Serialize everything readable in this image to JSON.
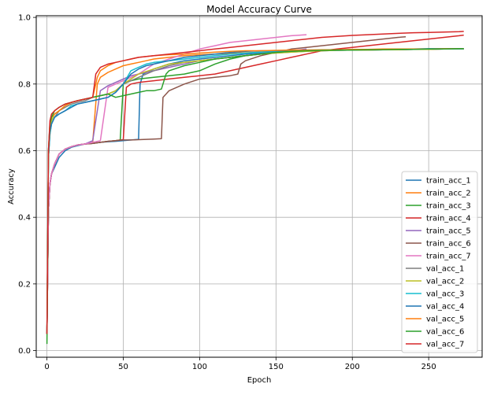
{
  "chart_data": {
    "type": "line",
    "title": "Model Accuracy Curve",
    "xlabel": "Epoch",
    "ylabel": "Accuracy",
    "xlim": [
      -7,
      285
    ],
    "ylim": [
      -0.02,
      1.005
    ],
    "xticks": [
      0,
      50,
      100,
      150,
      200,
      250
    ],
    "yticks": [
      0.0,
      0.2,
      0.4,
      0.6,
      0.8,
      1.0
    ],
    "ytick_labels": [
      "0.0",
      "0.2",
      "0.4",
      "0.6",
      "0.8",
      "1.0"
    ],
    "grid": true,
    "legend_position": "lower right",
    "series": [
      {
        "name": "train_acc_1",
        "color": "#1f77b4",
        "x": [
          0,
          1,
          2,
          3,
          5,
          8,
          12,
          16,
          20,
          25,
          30,
          35,
          40,
          45,
          50,
          55,
          60,
          61,
          63,
          70,
          80,
          90,
          100,
          110,
          120,
          130,
          140,
          150,
          160,
          170,
          180,
          190,
          200,
          210,
          220,
          230,
          240,
          250,
          260,
          270,
          273
        ],
        "y": [
          0.05,
          0.42,
          0.5,
          0.53,
          0.55,
          0.58,
          0.6,
          0.61,
          0.615,
          0.62,
          0.622,
          0.625,
          0.627,
          0.628,
          0.63,
          0.632,
          0.634,
          0.8,
          0.83,
          0.845,
          0.86,
          0.87,
          0.875,
          0.88,
          0.885,
          0.89,
          0.893,
          0.896,
          0.898,
          0.9,
          0.9,
          0.901,
          0.902,
          0.902,
          0.903,
          0.903,
          0.904,
          0.904,
          0.905,
          0.905,
          0.905
        ]
      },
      {
        "name": "train_acc_2",
        "color": "#ff7f0e",
        "x": [
          0,
          1,
          2,
          3,
          5,
          8,
          12,
          16,
          20,
          25,
          30,
          33,
          35,
          40,
          45,
          50,
          55,
          60,
          65,
          70,
          80,
          90,
          100,
          110,
          120,
          130,
          140,
          150,
          160,
          170,
          180,
          190,
          200,
          210,
          220,
          230,
          240,
          250,
          260,
          270,
          273
        ],
        "y": [
          0.05,
          0.42,
          0.5,
          0.53,
          0.56,
          0.59,
          0.605,
          0.612,
          0.617,
          0.62,
          0.625,
          0.8,
          0.82,
          0.835,
          0.845,
          0.855,
          0.86,
          0.865,
          0.87,
          0.875,
          0.88,
          0.885,
          0.888,
          0.89,
          0.892,
          0.894,
          0.896,
          0.898,
          0.9,
          0.9,
          0.901,
          0.902,
          0.902,
          0.903,
          0.903,
          0.904,
          0.904,
          0.905,
          0.905,
          0.905,
          0.905
        ]
      },
      {
        "name": "train_acc_3",
        "color": "#2ca02c",
        "x": [
          0,
          1,
          2,
          3,
          5,
          8,
          12,
          16,
          20,
          25,
          30,
          35,
          40,
          45,
          48,
          50,
          55,
          60,
          70,
          80,
          90,
          100,
          110,
          120,
          130,
          140,
          150,
          160,
          170,
          180,
          190,
          200,
          210,
          220,
          230,
          240,
          250,
          260,
          270,
          273
        ],
        "y": [
          0.05,
          0.42,
          0.5,
          0.53,
          0.56,
          0.59,
          0.605,
          0.612,
          0.617,
          0.62,
          0.622,
          0.625,
          0.628,
          0.63,
          0.632,
          0.8,
          0.81,
          0.815,
          0.82,
          0.825,
          0.83,
          0.84,
          0.86,
          0.875,
          0.885,
          0.89,
          0.895,
          0.898,
          0.9,
          0.901,
          0.902,
          0.902,
          0.903,
          0.903,
          0.904,
          0.904,
          0.905,
          0.905,
          0.906,
          0.906
        ]
      },
      {
        "name": "train_acc_4",
        "color": "#d62728",
        "x": [
          0,
          1,
          2,
          3,
          5,
          8,
          12,
          16,
          20,
          25,
          30,
          35,
          40,
          45,
          50,
          52,
          55,
          60,
          70,
          80,
          90,
          100,
          110,
          120,
          130,
          140,
          150,
          160,
          170,
          180,
          190,
          200,
          210,
          220,
          230,
          240,
          250,
          260,
          270,
          273
        ],
        "y": [
          0.05,
          0.42,
          0.5,
          0.53,
          0.56,
          0.59,
          0.605,
          0.612,
          0.617,
          0.62,
          0.622,
          0.625,
          0.628,
          0.63,
          0.633,
          0.79,
          0.8,
          0.805,
          0.81,
          0.815,
          0.82,
          0.825,
          0.83,
          0.84,
          0.85,
          0.86,
          0.87,
          0.88,
          0.89,
          0.9,
          0.905,
          0.91,
          0.915,
          0.92,
          0.925,
          0.93,
          0.935,
          0.94,
          0.945,
          0.947
        ]
      },
      {
        "name": "train_acc_5",
        "color": "#9467bd",
        "x": [
          0,
          1,
          2,
          3,
          5,
          8,
          12,
          16,
          20,
          25,
          30,
          35,
          40,
          45,
          50,
          55,
          60,
          70,
          80,
          90,
          100,
          110,
          120,
          130,
          140,
          150,
          160,
          170
        ],
        "y": [
          0.05,
          0.42,
          0.5,
          0.53,
          0.56,
          0.59,
          0.605,
          0.612,
          0.617,
          0.62,
          0.63,
          0.78,
          0.795,
          0.805,
          0.815,
          0.825,
          0.83,
          0.84,
          0.85,
          0.86,
          0.87,
          0.875,
          0.88,
          0.885,
          0.89,
          0.895,
          0.9,
          0.905
        ]
      },
      {
        "name": "train_acc_6",
        "color": "#8c564b",
        "x": [
          0,
          1,
          2,
          3,
          5,
          8,
          12,
          16,
          20,
          25,
          30,
          35,
          40,
          45,
          50,
          55,
          60,
          65,
          70,
          75,
          76,
          78,
          80,
          90,
          100,
          110,
          120,
          125,
          127,
          130,
          140,
          150,
          160,
          170,
          180,
          190,
          200,
          210,
          220,
          230,
          235
        ],
        "y": [
          0.05,
          0.42,
          0.5,
          0.53,
          0.56,
          0.59,
          0.605,
          0.612,
          0.617,
          0.62,
          0.622,
          0.625,
          0.628,
          0.63,
          0.632,
          0.632,
          0.633,
          0.634,
          0.635,
          0.636,
          0.76,
          0.77,
          0.78,
          0.8,
          0.815,
          0.82,
          0.825,
          0.83,
          0.86,
          0.87,
          0.885,
          0.895,
          0.905,
          0.91,
          0.915,
          0.92,
          0.925,
          0.93,
          0.935,
          0.94,
          0.942
        ]
      },
      {
        "name": "train_acc_7",
        "color": "#e377c2",
        "x": [
          0,
          1,
          2,
          3,
          5,
          8,
          12,
          16,
          20,
          25,
          30,
          35,
          40,
          45,
          50,
          55,
          60,
          65,
          70,
          80,
          90,
          100,
          110,
          120,
          130,
          140,
          150,
          160,
          170
        ],
        "y": [
          0.05,
          0.42,
          0.5,
          0.53,
          0.56,
          0.59,
          0.605,
          0.612,
          0.617,
          0.62,
          0.625,
          0.63,
          0.79,
          0.8,
          0.81,
          0.82,
          0.83,
          0.845,
          0.86,
          0.875,
          0.89,
          0.905,
          0.915,
          0.925,
          0.93,
          0.935,
          0.94,
          0.945,
          0.948
        ]
      },
      {
        "name": "val_acc_1",
        "color": "#7f7f7f",
        "x": [
          0,
          1,
          2,
          3,
          5,
          8,
          12,
          16,
          20,
          25,
          30,
          35,
          40,
          45,
          50,
          55,
          60,
          70,
          80,
          90,
          100,
          110,
          120,
          130,
          140,
          150,
          160,
          170,
          180,
          190,
          200,
          210,
          220,
          230,
          240,
          250,
          260,
          270,
          273
        ],
        "y": [
          0.05,
          0.58,
          0.65,
          0.68,
          0.7,
          0.72,
          0.73,
          0.74,
          0.745,
          0.75,
          0.76,
          0.765,
          0.77,
          0.78,
          0.8,
          0.81,
          0.82,
          0.84,
          0.855,
          0.865,
          0.87,
          0.875,
          0.88,
          0.885,
          0.89,
          0.893,
          0.896,
          0.898,
          0.9,
          0.901,
          0.902,
          0.902,
          0.903,
          0.903,
          0.904,
          0.904,
          0.905,
          0.905,
          0.905
        ]
      },
      {
        "name": "val_acc_2",
        "color": "#bcbd22",
        "x": [
          0,
          1,
          2,
          3,
          5,
          8,
          12,
          16,
          20,
          25,
          30,
          35,
          40,
          45,
          50,
          55,
          60,
          70,
          80,
          90,
          100,
          110,
          120,
          130,
          140,
          150,
          160,
          170,
          180,
          190,
          200,
          210,
          220,
          230,
          240,
          250,
          260,
          270,
          273
        ],
        "y": [
          0.05,
          0.58,
          0.66,
          0.69,
          0.71,
          0.72,
          0.735,
          0.745,
          0.75,
          0.755,
          0.76,
          0.765,
          0.77,
          0.78,
          0.8,
          0.815,
          0.83,
          0.845,
          0.86,
          0.865,
          0.87,
          0.875,
          0.88,
          0.885,
          0.89,
          0.893,
          0.896,
          0.898,
          0.9,
          0.901,
          0.902,
          0.902,
          0.903,
          0.903,
          0.904,
          0.904,
          0.905,
          0.905,
          0.905
        ]
      },
      {
        "name": "val_acc_3",
        "color": "#17becf",
        "x": [
          0,
          1,
          2,
          3,
          5,
          8,
          12,
          16,
          20,
          25,
          30,
          35,
          40,
          45,
          50,
          55,
          60,
          65,
          70,
          80,
          90,
          100,
          110,
          120,
          130,
          140,
          150,
          160,
          170,
          180,
          190,
          200,
          210,
          220,
          230,
          240,
          250,
          260,
          270,
          273
        ],
        "y": [
          0.05,
          0.58,
          0.65,
          0.68,
          0.7,
          0.71,
          0.72,
          0.735,
          0.74,
          0.745,
          0.75,
          0.755,
          0.76,
          0.775,
          0.8,
          0.84,
          0.85,
          0.86,
          0.865,
          0.87,
          0.875,
          0.88,
          0.885,
          0.89,
          0.893,
          0.896,
          0.898,
          0.9,
          0.901,
          0.902,
          0.902,
          0.903,
          0.903,
          0.904,
          0.904,
          0.905,
          0.905,
          0.905,
          0.905,
          0.905
        ]
      },
      {
        "name": "val_acc_4",
        "color": "#1f77b4",
        "x": [
          0,
          1,
          2,
          3,
          5,
          8,
          12,
          16,
          20,
          25,
          30,
          35,
          40,
          45,
          50,
          55,
          60,
          65,
          70,
          80,
          90,
          100,
          110,
          120,
          130,
          140,
          150,
          160,
          170,
          180,
          190,
          200,
          210,
          220,
          230,
          240,
          250,
          260,
          270,
          273
        ],
        "y": [
          0.05,
          0.58,
          0.66,
          0.68,
          0.7,
          0.71,
          0.72,
          0.73,
          0.74,
          0.745,
          0.75,
          0.755,
          0.76,
          0.775,
          0.8,
          0.83,
          0.845,
          0.855,
          0.86,
          0.87,
          0.88,
          0.885,
          0.89,
          0.895,
          0.898,
          0.9,
          0.9,
          0.901,
          0.902,
          0.902,
          0.903,
          0.903,
          0.904,
          0.904,
          0.905,
          0.905,
          0.906,
          0.906,
          0.906,
          0.906
        ]
      },
      {
        "name": "val_acc_5",
        "color": "#ff7f0e",
        "x": [
          0,
          1,
          2,
          3,
          5,
          8,
          12,
          16,
          20,
          25,
          30,
          33,
          35,
          40,
          45,
          50,
          55,
          60,
          70,
          80,
          90,
          100,
          110,
          120,
          130,
          140,
          150,
          160,
          170,
          180,
          190,
          200,
          210,
          220,
          230,
          240,
          250,
          260,
          270,
          273
        ],
        "y": [
          0.05,
          0.6,
          0.68,
          0.7,
          0.71,
          0.72,
          0.735,
          0.745,
          0.75,
          0.755,
          0.76,
          0.82,
          0.84,
          0.855,
          0.865,
          0.87,
          0.875,
          0.88,
          0.885,
          0.888,
          0.89,
          0.893,
          0.896,
          0.898,
          0.9,
          0.9,
          0.901,
          0.902,
          0.902,
          0.903,
          0.903,
          0.904,
          0.904,
          0.905,
          0.905,
          0.905,
          0.905,
          0.906,
          0.906,
          0.906
        ]
      },
      {
        "name": "val_acc_6",
        "color": "#2ca02c",
        "x": [
          0,
          1,
          2,
          3,
          5,
          8,
          12,
          16,
          20,
          25,
          30,
          35,
          40,
          45,
          50,
          55,
          60,
          65,
          70,
          75,
          78,
          80,
          90,
          100,
          110,
          120,
          130,
          140,
          150,
          160,
          170,
          180,
          190,
          200,
          210,
          220,
          230,
          240,
          250,
          260,
          270,
          273
        ],
        "y": [
          0.02,
          0.6,
          0.68,
          0.7,
          0.72,
          0.73,
          0.74,
          0.745,
          0.75,
          0.755,
          0.76,
          0.765,
          0.77,
          0.76,
          0.765,
          0.77,
          0.775,
          0.78,
          0.78,
          0.785,
          0.83,
          0.84,
          0.855,
          0.865,
          0.875,
          0.88,
          0.885,
          0.89,
          0.895,
          0.898,
          0.9,
          0.901,
          0.902,
          0.902,
          0.903,
          0.903,
          0.904,
          0.904,
          0.905,
          0.905,
          0.906,
          0.906
        ]
      },
      {
        "name": "val_acc_7",
        "color": "#d62728",
        "x": [
          0,
          1,
          2,
          3,
          5,
          8,
          12,
          16,
          20,
          25,
          30,
          32,
          35,
          40,
          45,
          50,
          55,
          60,
          70,
          80,
          90,
          100,
          110,
          120,
          130,
          140,
          150,
          160,
          170,
          180,
          190,
          200,
          210,
          220,
          230,
          240,
          250,
          260,
          270,
          273
        ],
        "y": [
          0.05,
          0.6,
          0.69,
          0.71,
          0.72,
          0.73,
          0.74,
          0.745,
          0.75,
          0.755,
          0.76,
          0.83,
          0.85,
          0.86,
          0.865,
          0.87,
          0.875,
          0.88,
          0.885,
          0.89,
          0.895,
          0.9,
          0.905,
          0.91,
          0.915,
          0.92,
          0.925,
          0.93,
          0.935,
          0.94,
          0.943,
          0.946,
          0.948,
          0.95,
          0.952,
          0.954,
          0.955,
          0.956,
          0.957,
          0.958
        ]
      }
    ]
  }
}
